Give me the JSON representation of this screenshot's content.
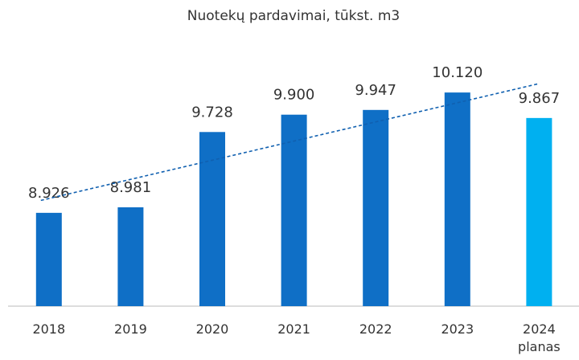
{
  "chart_data": {
    "type": "bar",
    "title": "Nuotekų pardavimai, tūkst. m3",
    "categories": [
      "2018",
      "2019",
      "2020",
      "2021",
      "2022",
      "2023",
      "2024\nplanas"
    ],
    "values": [
      8926,
      8981,
      9728,
      9900,
      9947,
      10120,
      9867
    ],
    "value_labels": [
      "8.926",
      "8.981",
      "9.728",
      "9.900",
      "9.947",
      "10.120",
      "9.867"
    ],
    "colors": [
      "#0f6fc6",
      "#0f6fc6",
      "#0f6fc6",
      "#0f6fc6",
      "#0f6fc6",
      "#0f6fc6",
      "#00b0f0"
    ],
    "ylim": [
      8000,
      10400
    ],
    "trendline": true,
    "trendline_color": "#1060b0"
  }
}
